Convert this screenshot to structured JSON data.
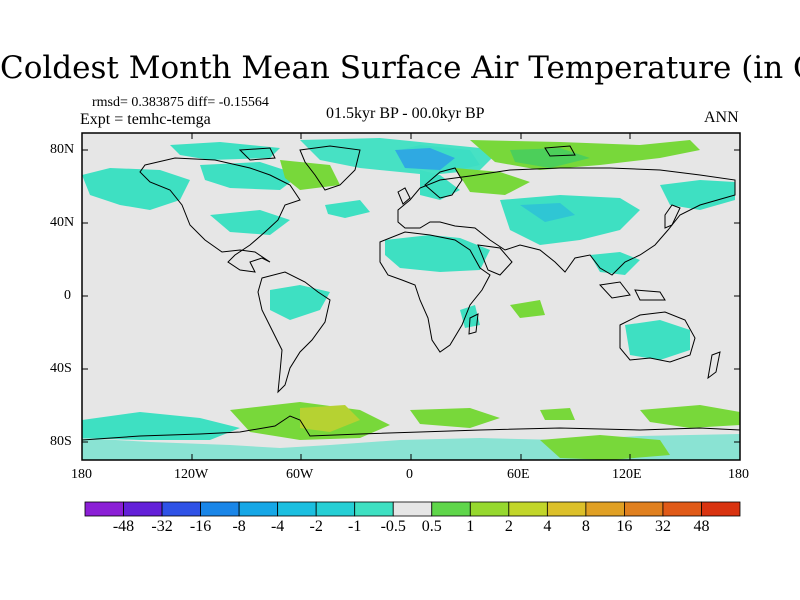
{
  "title": "Coldest Month Mean Surface Air Temperature (in C)",
  "stats_text": "rmsd= 0.383875 diff= -0.15564",
  "expt_text": "Expt = temhc-temga",
  "period_text": "01.5kyr BP - 00.0kyr BP",
  "season_text": "ANN",
  "lat_labels": [
    "80N",
    "40N",
    "0",
    "40S",
    "80S"
  ],
  "lon_labels": [
    "180",
    "120W",
    "60W",
    "0",
    "60E",
    "120E",
    "180"
  ],
  "colorbar": {
    "colors": [
      "#8b1fd6",
      "#6320d8",
      "#2f52e6",
      "#1a86e8",
      "#16a7e6",
      "#1bbfe0",
      "#26cfd5",
      "#3ee0c2",
      "#e6e6e6",
      "#5fd64a",
      "#96d82e",
      "#c2d62a",
      "#dcc02a",
      "#e0a024",
      "#e0801f",
      "#e05a18",
      "#d93310"
    ],
    "labels": [
      "-48",
      "-32",
      "-16",
      "-8",
      "-4",
      "-2",
      "-1",
      "-0.5",
      "0.5",
      "1",
      "2",
      "4",
      "8",
      "16",
      "32",
      "48"
    ]
  }
}
